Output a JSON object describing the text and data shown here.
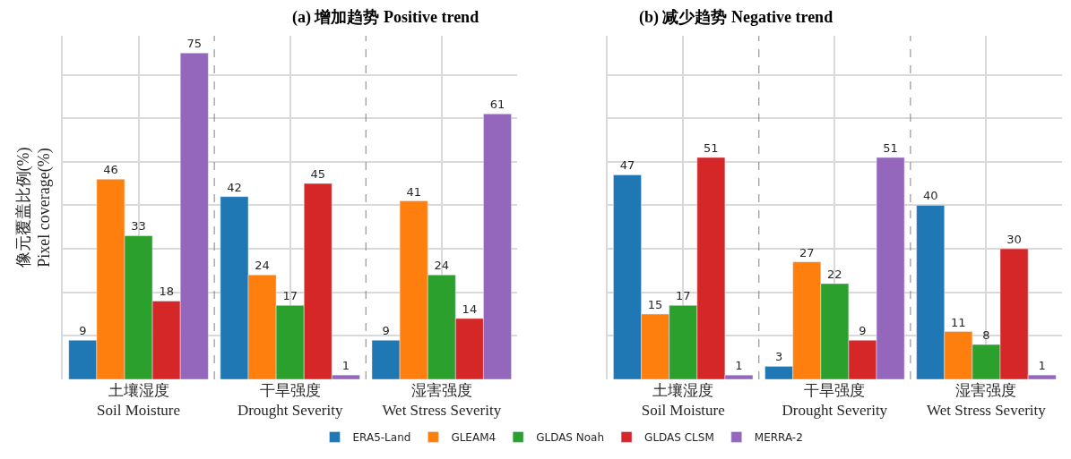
{
  "chart_data": [
    {
      "type": "bar",
      "title": "(a) 增加趋势 Positive trend",
      "ylabel": "像元覆盖比例(%)\nPixel coverage(%)",
      "categories": [
        "土壤湿度\nSoil Moisture",
        "干旱强度\nDrought Severity",
        "湿害强度\nWet Stress Severity"
      ],
      "series": [
        {
          "name": "ERA5-Land",
          "color": "#1f77b4",
          "values": [
            9,
            42,
            9
          ]
        },
        {
          "name": "GLEAM4",
          "color": "#ff7f0e",
          "values": [
            46,
            24,
            41
          ]
        },
        {
          "name": "GLDAS Noah",
          "color": "#2ca02c",
          "values": [
            33,
            17,
            24
          ]
        },
        {
          "name": "GLDAS CLSM",
          "color": "#d62728",
          "values": [
            18,
            45,
            14
          ]
        },
        {
          "name": "MERRA-2",
          "color": "#9467bd",
          "values": [
            75,
            1,
            61
          ]
        }
      ],
      "tick_labels": "x",
      "grid": true,
      "data_labels": true,
      "legend": "bottom"
    },
    {
      "type": "bar",
      "title": "(b) 减少趋势 Negative trend",
      "categories": [
        "土壤湿度\nSoil Moisture",
        "干旱强度\nDrought Severity",
        "湿害强度\nWet Stress Severity"
      ],
      "series": [
        {
          "color": "#1f77b4",
          "values": [
            47,
            3,
            40
          ]
        },
        {
          "color": "#ff7f0e",
          "values": [
            15,
            27,
            11
          ]
        },
        {
          "color": "#2ca02c",
          "values": [
            17,
            22,
            8
          ]
        },
        {
          "color": "#d62728",
          "values": [
            51,
            9,
            30
          ]
        },
        {
          "color": "#9467bd",
          "values": [
            1,
            51,
            1
          ]
        }
      ],
      "tick_labels": "x",
      "grid": true,
      "data_labels": true
    }
  ]
}
